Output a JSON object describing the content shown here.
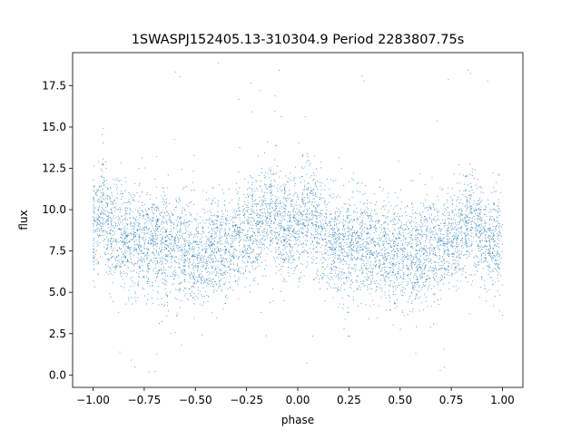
{
  "chart_data": {
    "type": "scatter",
    "title": "1SWASPJ152405.13-310304.9 Period 2283807.75s",
    "xlabel": "phase",
    "ylabel": "flux",
    "xlim": [
      -1.1,
      1.1
    ],
    "ylim": [
      -0.75,
      19.5
    ],
    "x_ticks": [
      -1.0,
      -0.75,
      -0.5,
      -0.25,
      0.0,
      0.25,
      0.5,
      0.75,
      1.0
    ],
    "x_tick_labels": [
      "−1.00",
      "−0.75",
      "−0.50",
      "−0.25",
      "0.00",
      "0.25",
      "0.50",
      "0.75",
      "1.00"
    ],
    "y_ticks": [
      0.0,
      2.5,
      5.0,
      7.5,
      10.0,
      12.5,
      15.0,
      17.5
    ],
    "y_tick_labels": [
      "0.0",
      "2.5",
      "5.0",
      "7.5",
      "10.0",
      "12.5",
      "15.0",
      "17.5"
    ],
    "grid": false,
    "legend": "none",
    "marker_color": "#1f77b4",
    "description": "Phase-folded light curve: thousands of points spanning phase -1 to 1, flux mostly 4-12 (median ~8) with scattered outliers 0-19; dense vertical streaks; brighter excursions near phase -0.95, -0.15, 0.05, 0.85.",
    "sample_points": {
      "x": [
        -0.98,
        -0.95,
        -0.92,
        -0.85,
        -0.78,
        -0.7,
        -0.62,
        -0.55,
        -0.47,
        -0.4,
        -0.33,
        -0.25,
        -0.18,
        -0.15,
        -0.08,
        0.0,
        0.05,
        0.1,
        0.18,
        0.25,
        0.32,
        0.4,
        0.47,
        0.55,
        0.6,
        0.68,
        0.75,
        0.82,
        0.85,
        0.9,
        0.95,
        0.99
      ],
      "y": [
        9.0,
        10.5,
        8.8,
        8.4,
        8.0,
        8.1,
        7.9,
        7.6,
        7.2,
        7.5,
        7.8,
        8.6,
        9.4,
        10.2,
        8.9,
        9.1,
        9.8,
        8.9,
        8.2,
        8.0,
        7.9,
        7.6,
        7.3,
        7.2,
        7.4,
        7.8,
        8.3,
        9.0,
        9.6,
        8.3,
        7.9,
        8.0
      ]
    }
  }
}
